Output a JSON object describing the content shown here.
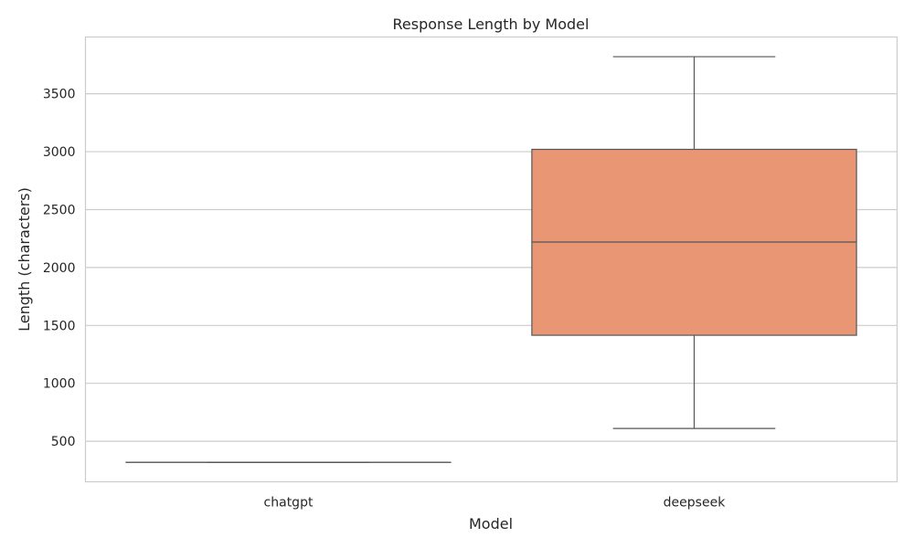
{
  "chart_data": {
    "type": "box",
    "title": "Response Length by Model",
    "xlabel": "Model",
    "ylabel": "Length (characters)",
    "categories": [
      "chatgpt",
      "deepseek"
    ],
    "boxes": [
      {
        "name": "chatgpt",
        "min": 318,
        "q1": 318,
        "median": 318,
        "q3": 318,
        "max": 318,
        "color": "#66c2a5"
      },
      {
        "name": "deepseek",
        "min": 610,
        "q1": 1415,
        "median": 2220,
        "q3": 3020,
        "max": 3820,
        "color": "#e99675"
      }
    ],
    "yticks": [
      500,
      1000,
      1500,
      2000,
      2500,
      3000,
      3500
    ],
    "ylim": [
      150,
      3990
    ],
    "grid": true,
    "colors": {
      "line": "#555555",
      "grid": "#cccccc",
      "frame": "#cccccc"
    }
  }
}
